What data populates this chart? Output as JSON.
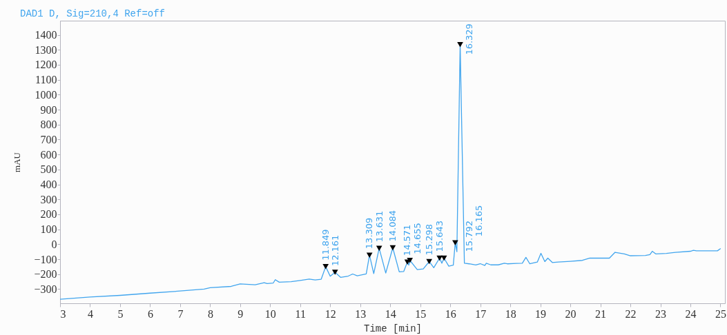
{
  "chart_data": {
    "type": "line",
    "title": "DAD1 D, Sig=210,4 Ref=off",
    "xlabel": "Time [min]",
    "ylabel": "mAU",
    "series": [
      {
        "color": "#41a5ee",
        "x": [
          3.0,
          4.0,
          5.0,
          6.0,
          7.0,
          7.8,
          8.0,
          8.7,
          9.0,
          9.5,
          9.8,
          9.9,
          10.1,
          10.17,
          10.3,
          10.7,
          11.0,
          11.3,
          11.5,
          11.7,
          11.849,
          12.0,
          12.161,
          12.35,
          12.6,
          12.75,
          12.9,
          13.2,
          13.309,
          13.45,
          13.631,
          13.85,
          14.084,
          14.3,
          14.45,
          14.571,
          14.62,
          14.655,
          14.9,
          15.1,
          15.298,
          15.45,
          15.643,
          15.72,
          15.792,
          15.95,
          16.1,
          16.165,
          16.22,
          16.329,
          16.47,
          16.63,
          16.85,
          17.0,
          17.15,
          17.2,
          17.35,
          17.6,
          17.8,
          17.9,
          18.2,
          18.4,
          18.52,
          18.65,
          18.9,
          19.02,
          19.15,
          19.25,
          19.4,
          19.6,
          20.0,
          20.4,
          20.65,
          21.3,
          21.49,
          21.8,
          22.0,
          22.5,
          22.65,
          22.73,
          22.85,
          23.2,
          23.5,
          24.0,
          24.1,
          24.2,
          24.9,
          25.0
        ],
        "values": [
          -368,
          -353,
          -342,
          -327,
          -313,
          -300,
          -291,
          -282,
          -265,
          -271,
          -257,
          -263,
          -260,
          -237,
          -254,
          -250,
          -242,
          -233,
          -239,
          -234,
          -150,
          -214,
          -188,
          -222,
          -213,
          -199,
          -211,
          -199,
          -73,
          -196,
          -27,
          -193,
          -24,
          -185,
          -182,
          -119,
          -140,
          -108,
          -170,
          -165,
          -116,
          -157,
          -93,
          -127,
          -93,
          -147,
          -140,
          10,
          -50,
          1335,
          -127,
          -131,
          -139,
          -130,
          -142,
          -127,
          -138,
          -138,
          -127,
          -131,
          -128,
          -127,
          -88,
          -131,
          -119,
          -61,
          -116,
          -93,
          -122,
          -119,
          -114,
          -108,
          -93,
          -93,
          -54,
          -65,
          -77,
          -75,
          -69,
          -47,
          -65,
          -61,
          -54,
          -47,
          -41,
          -44,
          -44,
          -30
        ]
      },
      {
        "type": "scatter",
        "color": "#000000",
        "marker": "triangle",
        "x": [
          11.849,
          12.161,
          13.309,
          13.631,
          14.084,
          14.571,
          14.655,
          15.298,
          15.643,
          15.792,
          16.165,
          16.329
        ],
        "values": [
          -150,
          -188,
          -73,
          -27,
          -24,
          -119,
          -108,
          -116,
          -93,
          -93,
          10,
          1335
        ]
      }
    ],
    "annotations": [
      {
        "text": "11.849",
        "x": 11.849,
        "y": -150
      },
      {
        "text": "12.161",
        "x": 12.161,
        "y": -188
      },
      {
        "text": "13.309",
        "x": 13.309,
        "y": -73
      },
      {
        "text": "13.631",
        "x": 13.631,
        "y": -27
      },
      {
        "text": "14.084",
        "x": 14.084,
        "y": -24
      },
      {
        "text": "14.571",
        "x": 14.571,
        "y": -119
      },
      {
        "text": "14.655",
        "x": 14.655,
        "y": -108
      },
      {
        "text": "15.298",
        "x": 15.298,
        "y": -116
      },
      {
        "text": "15.643",
        "x": 15.643,
        "y": -93
      },
      {
        "text": "15.792",
        "x": 15.792,
        "y": -93
      },
      {
        "text": "16.165",
        "x": 16.165,
        "y": 10
      },
      {
        "text": "16.329",
        "x": 16.329,
        "y": 1335
      }
    ],
    "xlim": [
      3,
      25.15
    ],
    "xticks": [
      3,
      4,
      5,
      6,
      7,
      8,
      9,
      10,
      11,
      12,
      13,
      14,
      15,
      16,
      17,
      18,
      19,
      20,
      21,
      22,
      23,
      24,
      25
    ],
    "ylim": [
      -395,
      1495
    ],
    "yticks": [
      -300,
      -200,
      -100,
      0,
      100,
      200,
      300,
      400,
      500,
      600,
      700,
      800,
      900,
      1000,
      1100,
      1200,
      1300,
      1400
    ]
  }
}
